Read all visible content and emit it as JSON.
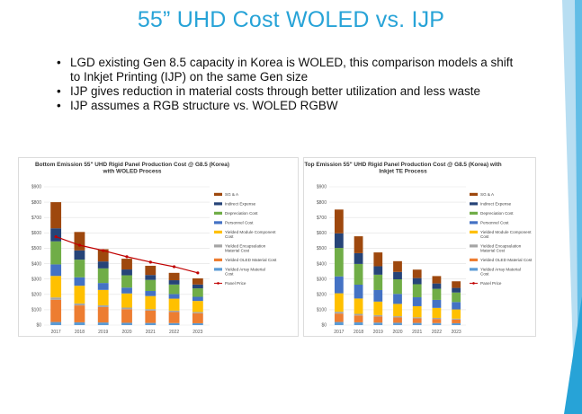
{
  "slide": {
    "title": "55” UHD Cost WOLED vs. IJP",
    "bullets": [
      "LGD existing Gen 8.5 capacity in Korea is WOLED, this comparison models a shift to Inkjet Printing (IJP) on the same Gen size",
      "IJP gives reduction in material costs through better utilization and less waste",
      "IJP assumes a RGB structure vs. WOLED RGBW"
    ],
    "accent_color": "#27a3d7"
  },
  "chart_data": [
    {
      "type": "bar",
      "stacked": true,
      "title_lines": [
        "Bottom Emission 55\" UHD Rigid Panel Production Cost @ G8.5 (Korea)",
        "with WOLED Process"
      ],
      "categories": [
        "2017",
        "2018",
        "2019",
        "2020",
        "2021",
        "2022",
        "2023"
      ],
      "ylim": [
        0,
        900
      ],
      "yticks": [
        0,
        100,
        200,
        300,
        400,
        500,
        600,
        700,
        800,
        900
      ],
      "ytick_labels": [
        "$0",
        "$100",
        "$200",
        "$300",
        "$400",
        "$500",
        "$600",
        "$700",
        "$800",
        "$900"
      ],
      "series": [
        {
          "name": "Yielded Array Material Cost",
          "color": "#5b9bd5",
          "values": [
            20,
            18,
            17,
            15,
            14,
            13,
            12
          ]
        },
        {
          "name": "Yielded OLED Material Cost",
          "color": "#ed7d31",
          "values": [
            145,
            110,
            100,
            88,
            80,
            72,
            65
          ]
        },
        {
          "name": "Yielded Encapsulation Material Cost",
          "color": "#a5a5a5",
          "values": [
            15,
            13,
            12,
            11,
            10,
            9,
            8
          ]
        },
        {
          "name": "Yielded Module Component Cost",
          "color": "#ffc000",
          "values": [
            140,
            115,
            100,
            92,
            85,
            78,
            72
          ]
        },
        {
          "name": "Personnel Cost",
          "color": "#4472c4",
          "values": [
            75,
            55,
            45,
            38,
            33,
            30,
            27
          ]
        },
        {
          "name": "Depreciation Cost",
          "color": "#70ad47",
          "values": [
            150,
            115,
            95,
            80,
            72,
            62,
            55
          ]
        },
        {
          "name": "Indirect Expense",
          "color": "#264478",
          "values": [
            85,
            60,
            45,
            38,
            32,
            28,
            25
          ]
        },
        {
          "name": "SG & A",
          "color": "#9e480e",
          "values": [
            170,
            120,
            80,
            70,
            60,
            48,
            40
          ]
        }
      ],
      "line": {
        "name": "Panel Price",
        "color": "#c00000",
        "values": [
          575,
          520,
          485,
          445,
          410,
          380,
          340
        ]
      }
    },
    {
      "type": "bar",
      "stacked": true,
      "title_lines": [
        "Top Emission 55\" UHD Rigid Panel Production Cost @ G8.5 (Korea) with",
        "Inkjet TE Process"
      ],
      "categories": [
        "2017",
        "2018",
        "2019",
        "2020",
        "2021",
        "2022",
        "2023"
      ],
      "ylim": [
        0,
        900
      ],
      "yticks": [
        0,
        100,
        200,
        300,
        400,
        500,
        600,
        700,
        800,
        900
      ],
      "ytick_labels": [
        "$0",
        "$100",
        "$200",
        "$300",
        "$400",
        "$500",
        "$600",
        "$700",
        "$800",
        "$900"
      ],
      "series": [
        {
          "name": "Yielded Array Material Cost",
          "color": "#5b9bd5",
          "values": [
            20,
            18,
            16,
            15,
            14,
            13,
            12
          ]
        },
        {
          "name": "Yielded OLED Material Cost",
          "color": "#ed7d31",
          "values": [
            55,
            45,
            40,
            35,
            30,
            27,
            24
          ]
        },
        {
          "name": "Yielded Encapsulation Material Cost",
          "color": "#a5a5a5",
          "values": [
            12,
            10,
            9,
            8,
            7,
            7,
            6
          ]
        },
        {
          "name": "Yielded Module Component Cost",
          "color": "#ffc000",
          "values": [
            120,
            100,
            88,
            80,
            72,
            65,
            60
          ]
        },
        {
          "name": "Personnel Cost",
          "color": "#4472c4",
          "values": [
            110,
            90,
            75,
            65,
            58,
            52,
            48
          ]
        },
        {
          "name": "Depreciation Cost",
          "color": "#70ad47",
          "values": [
            185,
            135,
            100,
            95,
            85,
            72,
            62
          ]
        },
        {
          "name": "Indirect Expense",
          "color": "#264478",
          "values": [
            95,
            70,
            55,
            48,
            40,
            35,
            30
          ]
        },
        {
          "name": "SG & A",
          "color": "#9e480e",
          "values": [
            155,
            110,
            90,
            70,
            55,
            48,
            43
          ]
        }
      ],
      "line": {
        "name": "Panel Price",
        "color": "#c00000",
        "values": null
      }
    }
  ]
}
